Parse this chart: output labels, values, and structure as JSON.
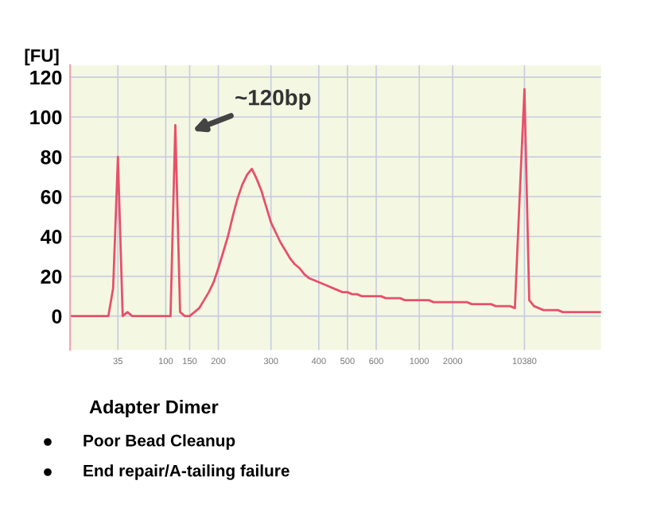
{
  "chart_data": {
    "type": "line",
    "ylabel": "[FU]",
    "categories": [
      null,
      null,
      null,
      null,
      null,
      null,
      null,
      null,
      null,
      null,
      "35",
      null,
      null,
      null,
      null,
      null,
      null,
      null,
      null,
      null,
      "100",
      null,
      null,
      null,
      null,
      "150",
      null,
      null,
      null,
      null,
      null,
      "200",
      null,
      null,
      null,
      null,
      null,
      null,
      null,
      null,
      null,
      null,
      "300",
      null,
      null,
      null,
      null,
      null,
      null,
      null,
      null,
      null,
      "400",
      null,
      null,
      null,
      null,
      null,
      "500",
      null,
      null,
      null,
      null,
      null,
      "600",
      null,
      null,
      null,
      null,
      null,
      null,
      null,
      null,
      "1000",
      null,
      null,
      null,
      null,
      null,
      null,
      "2000",
      null,
      null,
      null,
      null,
      null,
      null,
      null,
      null,
      null,
      null,
      null,
      null,
      null,
      null,
      "10380",
      null,
      null,
      null,
      null,
      null,
      null,
      null,
      null,
      null,
      null,
      null,
      null,
      null,
      null,
      null,
      null
    ],
    "series": [
      {
        "color": "#e8506a",
        "values": [
          0,
          0,
          0,
          0,
          0,
          0,
          0,
          0,
          0,
          14,
          80,
          0,
          2,
          0,
          0,
          0,
          0,
          0,
          0,
          0,
          0,
          0,
          96,
          2,
          0,
          0,
          2,
          4,
          8,
          12,
          17,
          24,
          32,
          40,
          50,
          59,
          66,
          71,
          74,
          69,
          63,
          55,
          47,
          42,
          37,
          33,
          29,
          26,
          24,
          21,
          19,
          18,
          17,
          16,
          15,
          14,
          13,
          12,
          12,
          11,
          11,
          10,
          10,
          10,
          10,
          10,
          9,
          9,
          9,
          9,
          8,
          8,
          8,
          8,
          8,
          8,
          7,
          7,
          7,
          7,
          7,
          7,
          7,
          7,
          6,
          6,
          6,
          6,
          6,
          5,
          5,
          5,
          5,
          4,
          60,
          114,
          8,
          5,
          4,
          3,
          3,
          3,
          3,
          2,
          2,
          2,
          2,
          2,
          2,
          2,
          2,
          2
        ]
      }
    ],
    "ylim": [
      -17,
      126
    ],
    "yticks": [
      0,
      20,
      40,
      60,
      80,
      100,
      120
    ],
    "grid": true,
    "marker": "none",
    "line_style": "solid",
    "annotations": [
      "~120bp",
      "Adapter Dimer",
      "Poor Bead Cleanup",
      "End repair/A-tailing failure"
    ]
  }
}
